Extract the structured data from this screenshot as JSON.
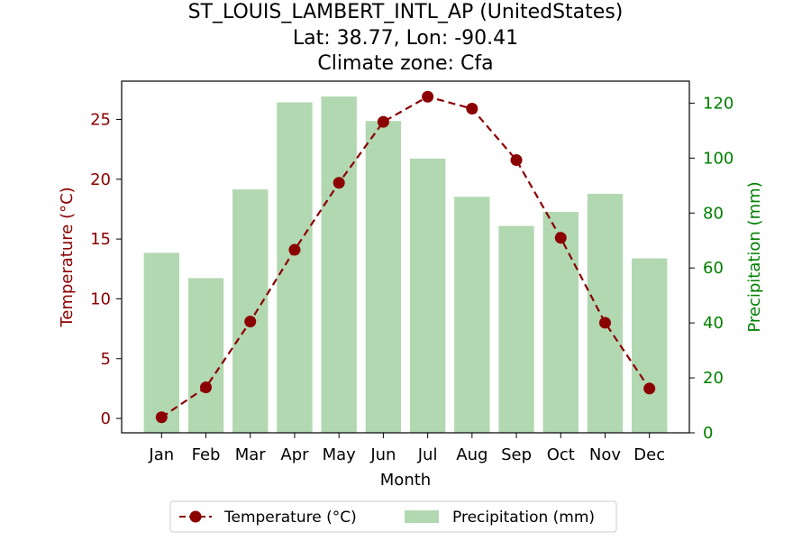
{
  "chart_data": {
    "type": "bar+line",
    "title_lines": [
      "ST_LOUIS_LAMBERT_INTL_AP (UnitedStates)",
      "Lat: 38.77, Lon: -90.41",
      "Climate zone: Cfa"
    ],
    "xlabel": "Month",
    "ylabel_left": "Temperature (°C)",
    "ylabel_right": "Precipitation (mm)",
    "categories": [
      "Jan",
      "Feb",
      "Mar",
      "Apr",
      "May",
      "Jun",
      "Jul",
      "Aug",
      "Sep",
      "Oct",
      "Nov",
      "Dec"
    ],
    "temperature": {
      "name": "Temperature (°C)",
      "values": [
        0.1,
        2.6,
        8.1,
        14.1,
        19.7,
        24.8,
        26.9,
        25.9,
        21.6,
        15.1,
        8.0,
        2.5
      ],
      "ylim": [
        -1.2,
        28.2
      ],
      "ticks": [
        0,
        5,
        10,
        15,
        20,
        25
      ],
      "color": "#8b0000",
      "style": "dashed line with circle markers"
    },
    "precipitation": {
      "name": "Precipitation (mm)",
      "values": [
        65.5,
        56.3,
        88.6,
        120.3,
        122.4,
        113.5,
        99.8,
        85.9,
        75.3,
        80.4,
        87.0,
        63.5
      ],
      "ylim": [
        0,
        128
      ],
      "ticks": [
        0,
        20,
        40,
        60,
        80,
        100,
        120
      ],
      "color": "#b2d8b2"
    },
    "left_axis_color": "#8b0000",
    "right_axis_color": "#008000",
    "legend_position": "bottom-center",
    "grid": false
  }
}
